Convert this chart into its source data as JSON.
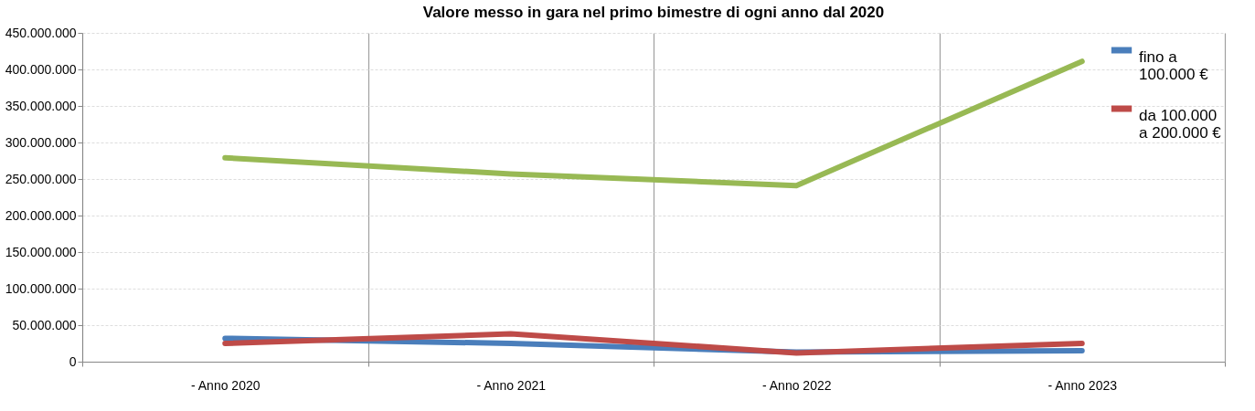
{
  "chart_data": {
    "type": "line",
    "title": "Valore messo in gara nel primo bimestre di ogni anno dal 2020",
    "categories": [
      "- Anno 2020",
      "- Anno 2021",
      "- Anno 2022",
      "- Anno 2023"
    ],
    "series": [
      {
        "name": "fino a 100.000 €",
        "color": "#4a7ebb",
        "values": [
          32000000,
          25000000,
          13000000,
          15000000
        ]
      },
      {
        "name": "da 100.000 a 200.000 €",
        "color": "#be4b48",
        "values": [
          25000000,
          38000000,
          12000000,
          25000000
        ]
      },
      {
        "color": "#98b954",
        "values": [
          279000000,
          257000000,
          241000000,
          411000000
        ]
      }
    ],
    "ylim": [
      0,
      450000000
    ],
    "yticks": [
      0,
      {
        "value": 50000000,
        "label": "50.000.000"
      },
      {
        "value": 100000000,
        "label": "100.000.000"
      },
      {
        "value": 150000000,
        "label": "150.000.000"
      },
      {
        "value": 200000000,
        "label": "200.000.000"
      },
      {
        "value": 250000000,
        "label": "250.000.000"
      },
      {
        "value": 300000000,
        "label": "300.000.000"
      },
      {
        "value": 350000000,
        "label": "350.000.000"
      },
      {
        "value": 400000000,
        "label": "400.000.000"
      },
      {
        "value": 450000000,
        "label": "450.000.000"
      }
    ],
    "grid": true,
    "legend": "top right",
    "marker": "none",
    "line_style": "solid"
  }
}
